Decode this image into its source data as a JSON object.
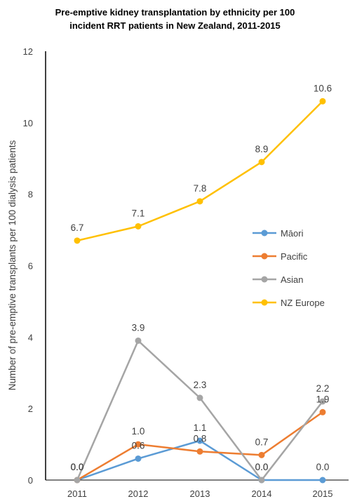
{
  "chart_data": {
    "type": "line",
    "title_line1": "Pre-emptive kidney transplantation by ethnicity per 100",
    "title_line2": "incident RRT patients in New Zealand, 2011-2015",
    "xlabel": "",
    "ylabel": "Number of pre-emptive transplants per 100 dialysis patients",
    "x": [
      "2011",
      "2012",
      "2013",
      "2014",
      "2015"
    ],
    "ylim": [
      0,
      12
    ],
    "yticks": [
      "0",
      "2",
      "4",
      "6",
      "8",
      "10",
      "12"
    ],
    "grid": false,
    "legend_position": "right",
    "series": [
      {
        "name": "Māori",
        "color": "#5b9bd5",
        "values": [
          0.0,
          0.6,
          1.1,
          0.0,
          0.0
        ],
        "labels": [
          "0.0",
          "0.6",
          "1.1",
          "0.0",
          "0.0"
        ]
      },
      {
        "name": "Pacific",
        "color": "#ed7d31",
        "values": [
          0.0,
          1.0,
          0.8,
          0.7,
          1.9
        ],
        "labels": [
          "0.0",
          "1.0",
          "0.8",
          "0.7",
          "1.9"
        ]
      },
      {
        "name": "Asian",
        "color": "#a5a5a5",
        "values": [
          0.0,
          3.9,
          2.3,
          0.0,
          2.2
        ],
        "labels": [
          "0.0",
          "3.9",
          "2.3",
          "0.0",
          "2.2"
        ]
      },
      {
        "name": "NZ Europe",
        "color": "#ffc000",
        "values": [
          6.7,
          7.1,
          7.8,
          8.9,
          10.6
        ],
        "labels": [
          "6.7",
          "7.1",
          "7.8",
          "8.9",
          "10.6"
        ]
      }
    ]
  }
}
